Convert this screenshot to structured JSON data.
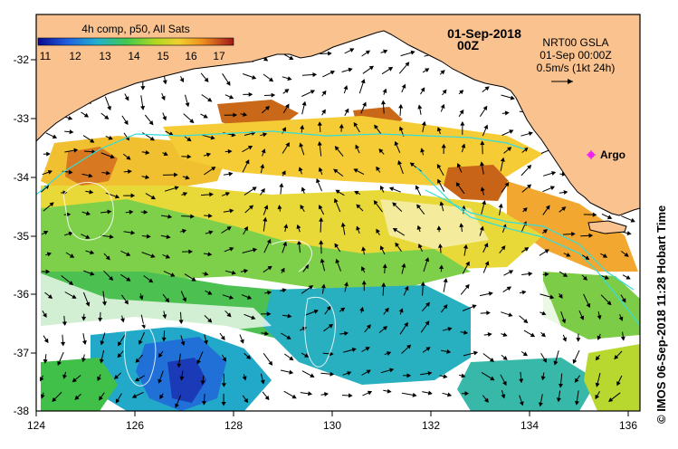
{
  "colorbar": {
    "title": "4h comp, p50, All Sats",
    "ticks": [
      "11",
      "12",
      "13",
      "14",
      "15",
      "16",
      "17"
    ]
  },
  "header": {
    "date": "01-Sep-2018",
    "time": "00Z"
  },
  "current_legend": {
    "line1": "NRT00 GSLA",
    "line2": "01-Sep 00:00Z",
    "line3": "0.5m/s (1kt 24h)"
  },
  "argo": {
    "label": "Argo",
    "color": "#ee22ee"
  },
  "credit": "© IMOS 06-Sep-2018 11:28 Hobart Time",
  "axes": {
    "x_ticks": [
      "124",
      "126",
      "128",
      "130",
      "132",
      "134",
      "136"
    ],
    "y_ticks": [
      "-32",
      "-33",
      "-34",
      "-35",
      "-36",
      "-37",
      "-38"
    ]
  },
  "colors": {
    "land": "#f9c28f",
    "contour": "#33dddd",
    "sst_scale": [
      "#1a2ab0",
      "#2a70e0",
      "#18b0c8",
      "#40c850",
      "#a8d828",
      "#f0d030",
      "#f0a020",
      "#d06418",
      "#b02818"
    ]
  }
}
